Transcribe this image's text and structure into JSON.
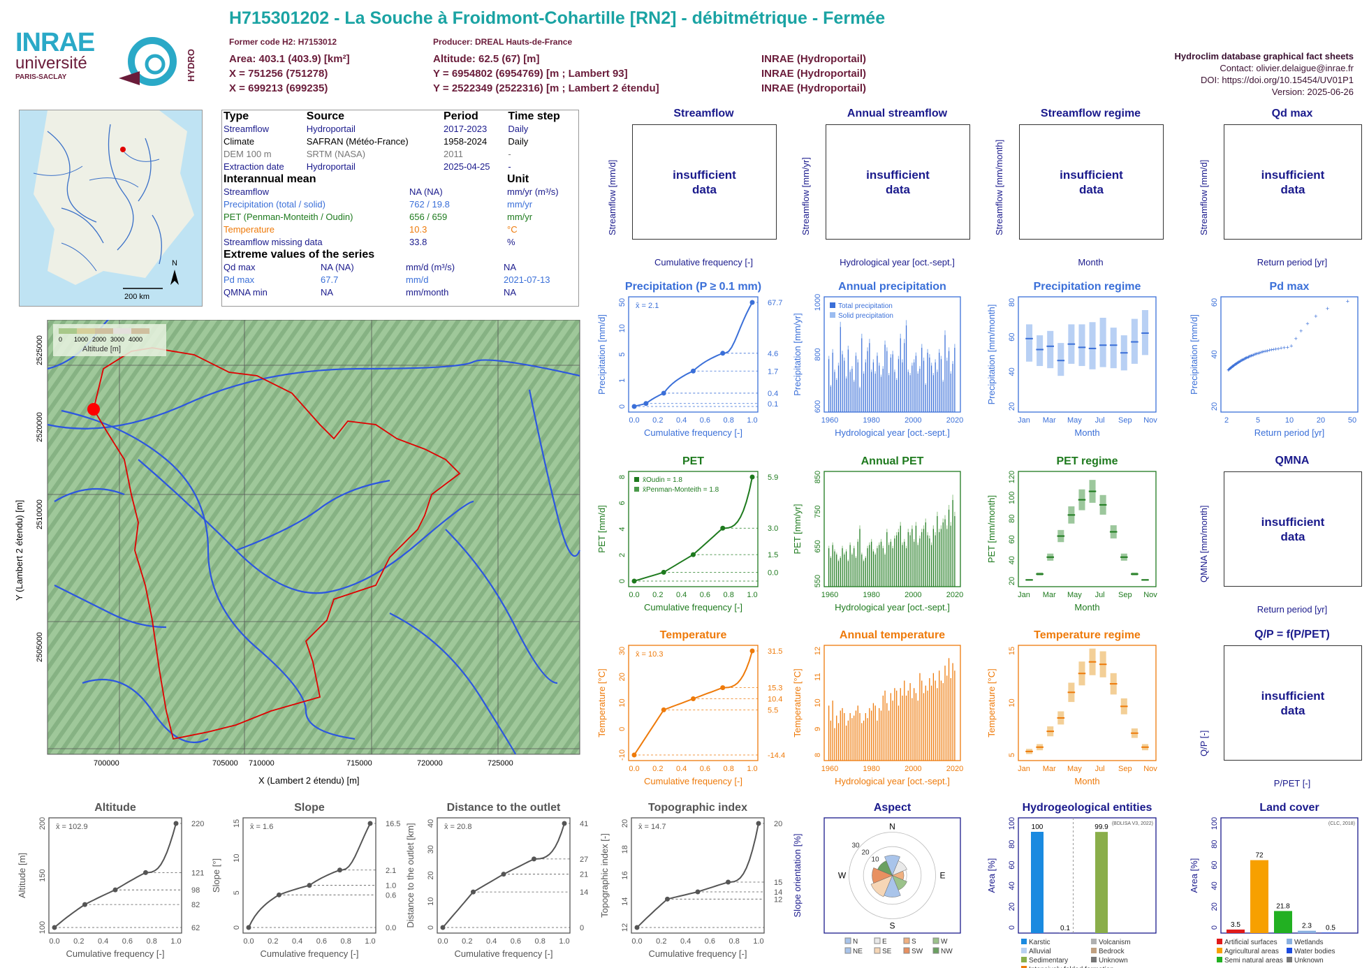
{
  "header": {
    "title": "H715301202 - La Souche à Froidmont-Cohartille [RN2] - débitmétrique - Fermée",
    "former_code": "Former code H2: H7153012",
    "producer": "Producer: DREAL Hauts-de-France",
    "area": "Area: 403.1 (403.9) [km²]",
    "altitude": "Altitude: 62.5 (67) [m]",
    "x93": "X = 751256 (751278)",
    "y93": "Y = 6954802 (6954769) [m ; Lambert 93]",
    "x2e": "X = 699213 (699235)",
    "y2e": "Y = 2522349 (2522316) [m ; Lambert 2 étendu]",
    "src1": "INRAE (Hydroportail)",
    "src2": "INRAE (Hydroportail)",
    "src3": "INRAE (Hydroportail)",
    "db": "Hydroclim database graphical fact sheets",
    "contact": "Contact: olivier.delaigue@inrae.fr",
    "doi": "DOI: https://doi.org/10.15454/UV01P1",
    "version": "Version: 2025-06-26",
    "logo_inrae": "INRAE",
    "logo_univ": "université",
    "logo_ps": "PARIS-SACLAY",
    "logo_hydro": "HYDRO"
  },
  "info": {
    "cols": [
      "Type",
      "Source",
      "Period",
      "Time step"
    ],
    "rows": [
      [
        "Streamflow",
        "Hydroportail",
        "2017-2023",
        "Daily"
      ],
      [
        "Climate",
        "SAFRAN (Météo-France)",
        "1958-2024",
        "Daily"
      ],
      [
        "DEM 100 m",
        "SRTM (NASA)",
        "2011",
        "-"
      ],
      [
        "Extraction date",
        "Hydroportail",
        "2025-04-25",
        "-"
      ]
    ],
    "mean_title": "Interannual mean",
    "unit_title": "Unit",
    "means": [
      [
        "Streamflow",
        "NA (NA)",
        "mm/yr (m³/s)"
      ],
      [
        "Precipitation (total / solid)",
        "762 / 19.8",
        "mm/yr"
      ],
      [
        "PET (Penman-Monteith / Oudin)",
        "656 / 659",
        "mm/yr"
      ],
      [
        "Temperature",
        "10.3",
        "°C"
      ],
      [
        "Streamflow missing data",
        "33.8",
        "%"
      ]
    ],
    "extreme_title": "Extreme values of the series",
    "extremes": [
      [
        "Qd max",
        "NA (NA)",
        "mm/d (m³/s)",
        "NA"
      ],
      [
        "Pd max",
        "67.7",
        "mm/d",
        "2021-07-13"
      ],
      [
        "QMNA min",
        "NA",
        "mm/month",
        "NA"
      ]
    ]
  },
  "overview_map": {
    "scale": "200 km",
    "north": "N"
  },
  "map": {
    "xlabel": "X (Lambert 2 étendu) [m]",
    "ylabel": "Y (Lambert 2 étendu) [m]",
    "xticks": [
      "700000",
      "705000",
      "710000",
      "715000",
      "720000",
      "725000"
    ],
    "yticks": [
      "2505000",
      "2510000",
      "2515000",
      "2520000",
      "2525000"
    ],
    "legend_title": "Altitude [m]",
    "legend_ticks": [
      "0",
      "1000",
      "2000",
      "3000",
      "4000"
    ]
  },
  "insufficient": "insufficient data",
  "panels": {
    "streamflow": {
      "title": "Streamflow",
      "ylabel": "Streamflow [mm/d]",
      "xlabel": "Cumulative frequency [-]"
    },
    "annual_streamflow": {
      "title": "Annual streamflow",
      "ylabel": "Streamflow [mm/yr]",
      "xlabel": "Hydrological year [oct.-sept.]"
    },
    "streamflow_regime": {
      "title": "Streamflow regime",
      "ylabel": "Streamflow [mm/month]",
      "xlabel": "Month"
    },
    "qd_max": {
      "title": "Qd max",
      "ylabel": "Streamflow [mm/d]",
      "xlabel": "Return period [yr]"
    },
    "qmna": {
      "title": "QMNA",
      "ylabel": "QMNA [mm/month]",
      "xlabel": "Return period [yr]"
    },
    "qp": {
      "title": "Q/P = f(P/PET)",
      "ylabel": "Q/P [-]",
      "xlabel": "P/PET [-]"
    }
  },
  "chart_data": [
    {
      "id": "precip_cdf",
      "type": "line",
      "title": "Precipitation (P ≥ 0.1 mm)",
      "xlabel": "Cumulative frequency [-]",
      "ylabel": "Precipitation [mm/d]",
      "mean_label": "x̄ = 2.1",
      "x": [
        0,
        0.1,
        0.25,
        0.5,
        0.75,
        1.0
      ],
      "y": [
        0.1,
        0.15,
        0.4,
        1.7,
        4.6,
        67.7
      ],
      "yticks": [
        "0",
        "1",
        "5",
        "10",
        "50"
      ],
      "xticks": [
        "0.0",
        "0.2",
        "0.4",
        "0.6",
        "0.8",
        "1.0"
      ],
      "right_labels": [
        "67.7",
        "4.6",
        "1.7",
        "0.4",
        "0.1"
      ]
    },
    {
      "id": "annual_precip",
      "type": "bar",
      "title": "Annual precipitation",
      "xlabel": "Hydrological year [oct.-sept.]",
      "ylabel": "Precipitation [mm/yr]",
      "legend": [
        "Total precipitation",
        "Solid precipitation"
      ],
      "xticks": [
        "1960",
        "1980",
        "2000",
        "2020"
      ],
      "yticks": [
        "600",
        "800",
        "1000"
      ],
      "ylim": [
        450,
        1150
      ],
      "values": [
        780,
        610,
        820,
        700,
        650,
        740,
        980,
        810,
        770,
        660,
        840,
        700,
        720,
        640,
        800,
        760,
        600,
        910,
        690,
        760,
        830,
        880,
        700,
        760,
        690,
        800,
        740,
        670,
        720,
        870,
        830,
        680,
        790,
        810,
        700,
        650,
        780,
        910,
        760,
        880,
        990,
        700,
        680,
        740,
        760,
        800,
        690,
        720,
        850,
        770,
        620,
        820,
        790,
        740,
        680,
        760,
        700,
        820,
        780,
        640,
        930,
        770,
        830,
        690,
        750,
        850
      ]
    },
    {
      "id": "precip_regime",
      "type": "box",
      "title": "Precipitation regime",
      "xlabel": "Month",
      "ylabel": "Precipitation [mm/month]",
      "yticks": [
        "20",
        "40",
        "60",
        "80"
      ],
      "ylim": [
        0,
        100
      ],
      "xticks": [
        "Jan",
        "Mar",
        "May",
        "Jul",
        "Sep",
        "Nov"
      ],
      "median": [
        67,
        57,
        60,
        47,
        62,
        59,
        58,
        61,
        61,
        54,
        64,
        72
      ],
      "q1": [
        46,
        42,
        40,
        33,
        44,
        42,
        39,
        41,
        40,
        38,
        44,
        52
      ],
      "q3": [
        80,
        70,
        74,
        63,
        80,
        80,
        82,
        86,
        77,
        70,
        85,
        93
      ]
    },
    {
      "id": "pd_max",
      "type": "scatter",
      "title": "Pd max",
      "xlabel": "Return period [yr]",
      "ylabel": "Precipitation [mm/d]",
      "xticks": [
        "2",
        "5",
        "10",
        "20",
        "50"
      ],
      "yticks": [
        "20",
        "40",
        "60"
      ],
      "max": 67.7
    },
    {
      "id": "pet_cdf",
      "type": "line",
      "title": "PET",
      "xlabel": "Cumulative frequency [-]",
      "ylabel": "PET [mm/d]",
      "legend": [
        "x̄Oudin = 1.8",
        "x̄Penman-Monteith = 1.8"
      ],
      "x": [
        0,
        0.25,
        0.5,
        0.75,
        1.0
      ],
      "y": [
        0,
        0.5,
        1.5,
        3.0,
        5.9
      ],
      "right_labels": [
        "5.9",
        "3.0",
        "1.5",
        "0.0"
      ],
      "yticks": [
        "0",
        "2",
        "4",
        "6",
        "8"
      ],
      "xticks": [
        "0.0",
        "0.2",
        "0.4",
        "0.6",
        "0.8",
        "1.0"
      ]
    },
    {
      "id": "annual_pet",
      "type": "bar",
      "title": "Annual PET",
      "xlabel": "Hydrological year [oct.-sept.]",
      "ylabel": "PET [mm/yr]",
      "xticks": [
        "1960",
        "1980",
        "2000",
        "2020"
      ],
      "yticks": [
        "550",
        "650",
        "750",
        "850"
      ],
      "ylim": [
        520,
        870
      ],
      "values": [
        640,
        610,
        650,
        630,
        620,
        600,
        610,
        640,
        620,
        630,
        600,
        650,
        620,
        640,
        610,
        660,
        700,
        620,
        600,
        610,
        640,
        650,
        660,
        630,
        620,
        640,
        650,
        660,
        640,
        620,
        690,
        650,
        660,
        640,
        670,
        680,
        690,
        710,
        650,
        660,
        640,
        690,
        680,
        700,
        660,
        710,
        650,
        670,
        690,
        700,
        720,
        680,
        670,
        650,
        700,
        680,
        740,
        690,
        700,
        720,
        730,
        700,
        760,
        710,
        790,
        740
      ]
    },
    {
      "id": "pet_regime",
      "type": "box",
      "title": "PET regime",
      "xlabel": "Month",
      "ylabel": "PET [mm/month]",
      "xticks": [
        "Jan",
        "Mar",
        "May",
        "Jul",
        "Sep",
        "Nov"
      ],
      "yticks": [
        "20",
        "40",
        "60",
        "80",
        "100",
        "120"
      ],
      "ylim": [
        0,
        130
      ],
      "median": [
        8,
        15,
        35,
        60,
        85,
        103,
        113,
        97,
        65,
        35,
        15,
        8
      ]
    },
    {
      "id": "temp_cdf",
      "type": "line",
      "title": "Temperature",
      "xlabel": "Cumulative frequency [-]",
      "ylabel": "Temperature [°C]",
      "mean_label": "x̄ = 10.3",
      "x": [
        0,
        0.25,
        0.5,
        0.75,
        1.0
      ],
      "y": [
        -14.4,
        5.5,
        10.4,
        15.3,
        31.5
      ],
      "right_labels": [
        "31.5",
        "15.3",
        "10.4",
        "5.5",
        "-14.4"
      ],
      "yticks": [
        "-10",
        "0",
        "10",
        "20",
        "30"
      ],
      "xticks": [
        "0.0",
        "0.2",
        "0.4",
        "0.6",
        "0.8",
        "1.0"
      ]
    },
    {
      "id": "annual_temp",
      "type": "bar",
      "title": "Annual temperature",
      "xlabel": "Hydrological year [oct.-sept.]",
      "ylabel": "Temperature [°C]",
      "xticks": [
        "1960",
        "1980",
        "2000",
        "2020"
      ],
      "yticks": [
        "8",
        "9",
        "10",
        "11",
        "12"
      ],
      "ylim": [
        8,
        12.5
      ],
      "values": [
        10.2,
        9.6,
        10.4,
        9.3,
        9.8,
        9.5,
        10.0,
        10.1,
        9.9,
        9.4,
        9.6,
        9.9,
        9.7,
        9.8,
        10.0,
        10.2,
        9.9,
        9.5,
        9.6,
        9.9,
        9.7,
        10.1,
        10.0,
        10.3,
        10.2,
        9.6,
        10.1,
        10.0,
        10.6,
        10.8,
        10.3,
        10.0,
        10.7,
        10.4,
        10.9,
        10.8,
        10.2,
        10.9,
        10.6,
        11.2,
        10.6,
        10.8,
        11.1,
        10.5,
        10.9,
        10.7,
        10.4,
        11.5,
        11.2,
        10.7,
        11.0,
        10.8,
        11.3,
        11.0,
        11.5,
        11.2,
        10.9,
        11.6,
        11.2,
        11.1,
        11.8,
        11.4,
        12.1,
        11.3,
        11.9,
        11.6
      ]
    },
    {
      "id": "temp_regime",
      "type": "box",
      "title": "Temperature regime",
      "xlabel": "Month",
      "ylabel": "Temperature [°C]",
      "xticks": [
        "Jan",
        "Mar",
        "May",
        "Jul",
        "Sep",
        "Nov"
      ],
      "yticks": [
        "5",
        "10",
        "15"
      ],
      "ylim": [
        2,
        20
      ],
      "median": [
        3.5,
        4.2,
        6.8,
        9.0,
        13.2,
        16.3,
        18.2,
        17.8,
        14.6,
        10.9,
        6.5,
        4.2
      ]
    },
    {
      "id": "altitude_cdf",
      "type": "line",
      "title": "Altitude",
      "xlabel": "Cumulative frequency [-]",
      "ylabel": "Altitude [m]",
      "mean_label": "x̄ = 102.9",
      "x": [
        0,
        0.25,
        0.5,
        0.75,
        1
      ],
      "y": [
        62,
        82,
        98,
        121,
        220
      ],
      "right_labels": [
        "220",
        "121",
        "98",
        "82",
        "62"
      ],
      "yticks": [
        "100",
        "150",
        "200"
      ],
      "xticks": [
        "0.0",
        "0.2",
        "0.4",
        "0.6",
        "0.8",
        "1.0"
      ]
    },
    {
      "id": "slope_cdf",
      "type": "line",
      "title": "Slope",
      "xlabel": "Cumulative frequency [-]",
      "ylabel": "Slope [°]",
      "mean_label": "x̄ = 1.6",
      "x": [
        0,
        0.25,
        0.5,
        0.75,
        1
      ],
      "y": [
        0,
        0.6,
        1.0,
        2.1,
        16.5
      ],
      "right_labels": [
        "16.5",
        "2.1",
        "1.0",
        "0.6",
        "0.0"
      ],
      "yticks": [
        "0",
        "5",
        "10",
        "15"
      ],
      "xticks": [
        "0.0",
        "0.2",
        "0.4",
        "0.6",
        "0.8",
        "1.0"
      ]
    },
    {
      "id": "distance_cdf",
      "type": "line",
      "title": "Distance to the outlet",
      "xlabel": "Cumulative frequency [-]",
      "ylabel": "Distance to the outlet [km]",
      "mean_label": "x̄ = 20.8",
      "x": [
        0,
        0.25,
        0.5,
        0.75,
        1
      ],
      "y": [
        0,
        14,
        21,
        27,
        41
      ],
      "right_labels": [
        "41",
        "27",
        "21",
        "14",
        "0"
      ],
      "yticks": [
        "0",
        "10",
        "20",
        "30",
        "40"
      ],
      "xticks": [
        "0.0",
        "0.2",
        "0.4",
        "0.6",
        "0.8",
        "1.0"
      ]
    },
    {
      "id": "topo_cdf",
      "type": "line",
      "title": "Topographic index",
      "xlabel": "Cumulative frequency [-]",
      "ylabel": "Topographic index [-]",
      "mean_label": "x̄ = 14.7",
      "x": [
        0,
        0.25,
        0.5,
        0.75,
        1
      ],
      "y": [
        12,
        13.8,
        14.3,
        15,
        20
      ],
      "right_labels": [
        "20",
        "15",
        "14",
        "12"
      ],
      "yticks": [
        "12",
        "14",
        "16",
        "18",
        "20"
      ],
      "xticks": [
        "0.0",
        "0.2",
        "0.4",
        "0.6",
        "0.8",
        "1.0"
      ]
    },
    {
      "id": "aspect",
      "type": "pie",
      "title": "Aspect",
      "ylabel": "Slope orientation [%]",
      "directions": [
        "N",
        "NE",
        "E",
        "SE",
        "S",
        "SW",
        "W",
        "NW"
      ],
      "values": [
        14,
        11,
        8,
        11,
        15,
        16,
        14,
        11
      ],
      "ring_labels": [
        "10",
        "20",
        "30"
      ],
      "legend": [
        "N",
        "E",
        "S",
        "W",
        "NE",
        "SE",
        "SW",
        "NW"
      ],
      "compass": [
        "N",
        "E",
        "S",
        "W"
      ]
    },
    {
      "id": "hydrogeo",
      "type": "bar",
      "title": "Hydrogeological entities",
      "ylabel": "Area [%]",
      "note": "(BDLISA V3, 2022)",
      "yticks": [
        "0",
        "20",
        "40",
        "60",
        "80",
        "100"
      ],
      "values": [
        100,
        0.1,
        99.9
      ],
      "labels": [
        "100",
        "0.1",
        "99.9"
      ],
      "legend": [
        "Karstic",
        "Volcanism",
        "Alluvial",
        "Bedrock",
        "Sedimentary",
        "Unknown",
        "Intensively folded formation"
      ]
    },
    {
      "id": "landcover",
      "type": "bar",
      "title": "Land cover",
      "ylabel": "Area [%]",
      "note": "(CLC, 2018)",
      "yticks": [
        "0",
        "20",
        "40",
        "60",
        "80",
        "100"
      ],
      "values": [
        3.5,
        72,
        21.8,
        2.3,
        0.5
      ],
      "labels": [
        "3.5",
        "72",
        "21.8",
        "2.3",
        "0.5"
      ],
      "legend": [
        "Artificial surfaces",
        "Wetlands",
        "Agricultural areas",
        "Water bodies",
        "Semi natural areas",
        "Unknown"
      ]
    }
  ],
  "colors": {
    "title": "#1aa3a3",
    "header": "#6a1c3a",
    "streamflow": "#1a1a8c",
    "precip": "#3a6fd8",
    "pet": "#1e7a1e",
    "temp": "#ee7a0a",
    "gray": "#555555"
  }
}
